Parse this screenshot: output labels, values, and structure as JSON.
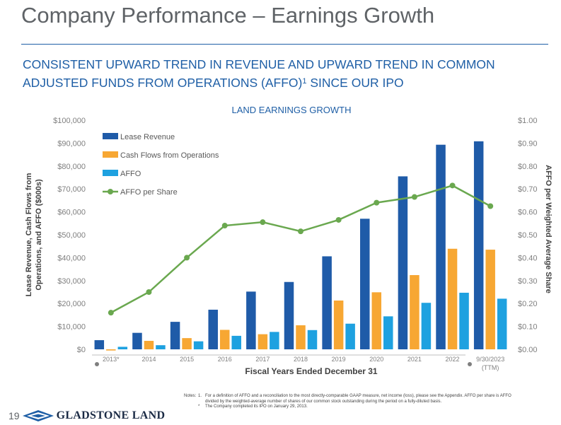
{
  "slide": {
    "title": "Company Performance – Earnings Growth",
    "subtitle_line1": "CONSISTENT UPWARD TREND IN REVENUE AND UPWARD TREND IN COMMON",
    "subtitle_line2_pre": "ADJUSTED FUNDS FROM OPERATIONS (AFFO)",
    "subtitle_sup": "1",
    "subtitle_line2_post": " SINCE OUR IPO",
    "page_number": "19",
    "brand": "GLADSTONE LAND"
  },
  "notes": {
    "label": "Notes:",
    "items": [
      {
        "marker": "1.",
        "text": "For a definition of AFFO and a reconciliation to the most directly-comparable GAAP measure, net income (loss), please see the Appendix.  AFFO per share is AFFO"
      },
      {
        "marker": "",
        "text": "divided by the weighted-average number of shares of our common stock outstanding during the period on a fully-diluted basis."
      },
      {
        "marker": "*",
        "text": "The Company completed its IPO on January 29, 2013."
      }
    ]
  },
  "chart_data": {
    "type": "bar",
    "title": "LAND EARNINGS GROWTH",
    "xlabel": "Fiscal Years Ended December 31",
    "ylabel_line1": "Lease Revenue, Cash Flows from",
    "ylabel_line2": "Operations, and AFFO ($000s)",
    "y2label": "AFFO per Weighted Average Share",
    "categories": [
      "2013*",
      "2014",
      "2015",
      "2016",
      "2017",
      "2018",
      "2019",
      "2020",
      "2021",
      "2022",
      "9/30/2023"
    ],
    "categories_sub": [
      "",
      "",
      "",
      "",
      "",
      "",
      "",
      "",
      "",
      "",
      "(TTM)"
    ],
    "ylim": [
      0,
      100000
    ],
    "y2lim": [
      0,
      1.0
    ],
    "y_ticks": [
      0,
      10000,
      20000,
      30000,
      40000,
      50000,
      60000,
      70000,
      80000,
      90000,
      100000
    ],
    "y_tick_labels": [
      "$0",
      "$10,000",
      "$20,000",
      "$30,000",
      "$40,000",
      "$50,000",
      "$60,000",
      "$70,000",
      "$80,000",
      "$90,000",
      "$100,000"
    ],
    "y2_ticks": [
      0,
      0.1,
      0.2,
      0.3,
      0.4,
      0.5,
      0.6,
      0.7,
      0.8,
      0.9,
      1.0
    ],
    "y2_tick_labels": [
      "$0.00",
      "$0.10",
      "$0.20",
      "$0.30",
      "$0.40",
      "$0.50",
      "$0.60",
      "$0.70",
      "$0.80",
      "$0.90",
      "$1.00"
    ],
    "series": [
      {
        "name": "Lease Revenue",
        "kind": "bar",
        "color": "#1f5ba8",
        "values": [
          4000,
          7200,
          12000,
          17300,
          25200,
          29400,
          40600,
          57000,
          75500,
          89300,
          90800
        ]
      },
      {
        "name": "Cash Flows from Operations",
        "kind": "bar",
        "color": "#f7a733",
        "values": [
          -500,
          3700,
          4900,
          8500,
          6600,
          10500,
          21300,
          24900,
          32400,
          43900,
          43500
        ]
      },
      {
        "name": "AFFO",
        "kind": "bar",
        "color": "#1ea1e0",
        "values": [
          1100,
          1800,
          3500,
          5900,
          7600,
          8400,
          11200,
          14400,
          20300,
          24700,
          22100
        ]
      },
      {
        "name": "AFFO per Share",
        "kind": "line",
        "axis": "right",
        "color": "#6aa84f",
        "values": [
          0.16,
          0.25,
          0.4,
          0.54,
          0.555,
          0.515,
          0.565,
          0.64,
          0.665,
          0.715,
          0.625
        ]
      }
    ]
  }
}
